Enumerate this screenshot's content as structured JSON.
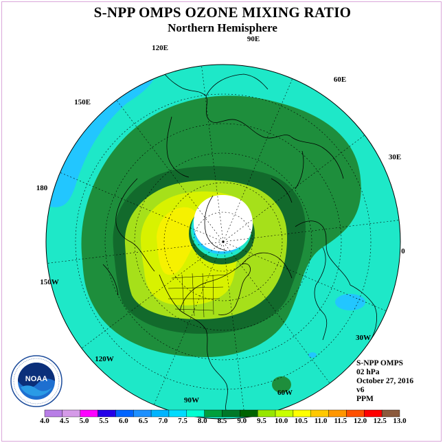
{
  "title": "S-NPP OMPS OZONE MIXING RATIO",
  "subtitle": "Northern Hemisphere",
  "longitude_labels": [
    "90E",
    "60E",
    "30E",
    "0",
    "30W",
    "60W",
    "90W",
    "120W",
    "150W",
    "180",
    "150E",
    "120E"
  ],
  "info": {
    "instrument": "S-NPP OMPS",
    "level": "02 hPa",
    "date": "October 27, 2016",
    "version": "v6",
    "units": "PPM"
  },
  "logo_text": "NOAA",
  "colorbar": {
    "labels": [
      "4.0",
      "4.5",
      "5.0",
      "5.5",
      "6.0",
      "6.5",
      "7.0",
      "7.5",
      "8.0",
      "8.5",
      "9.0",
      "9.5",
      "10.0",
      "10.5",
      "11.0",
      "11.5",
      "12.0",
      "12.5",
      "13.0"
    ],
    "colors": [
      "#b87ee6",
      "#d59ae8",
      "#ff00ff",
      "#2400e8",
      "#0064ff",
      "#1e90ff",
      "#00b4ff",
      "#00dcff",
      "#00ffd2",
      "#00a03c",
      "#007828",
      "#006400",
      "#96e600",
      "#c8ff00",
      "#ffff00",
      "#ffc800",
      "#ff9600",
      "#ff5000",
      "#ff0000",
      "#8b5a3c"
    ]
  },
  "legend_colors": {
    "cyan": "#1ee8c8",
    "blue": "#22c6ff",
    "green_85": "#1e8e3c",
    "green_90": "#126a2c",
    "lime_95": "#a6e01a",
    "yellow_100": "#d8f200",
    "yellow_105": "#f6f100"
  }
}
